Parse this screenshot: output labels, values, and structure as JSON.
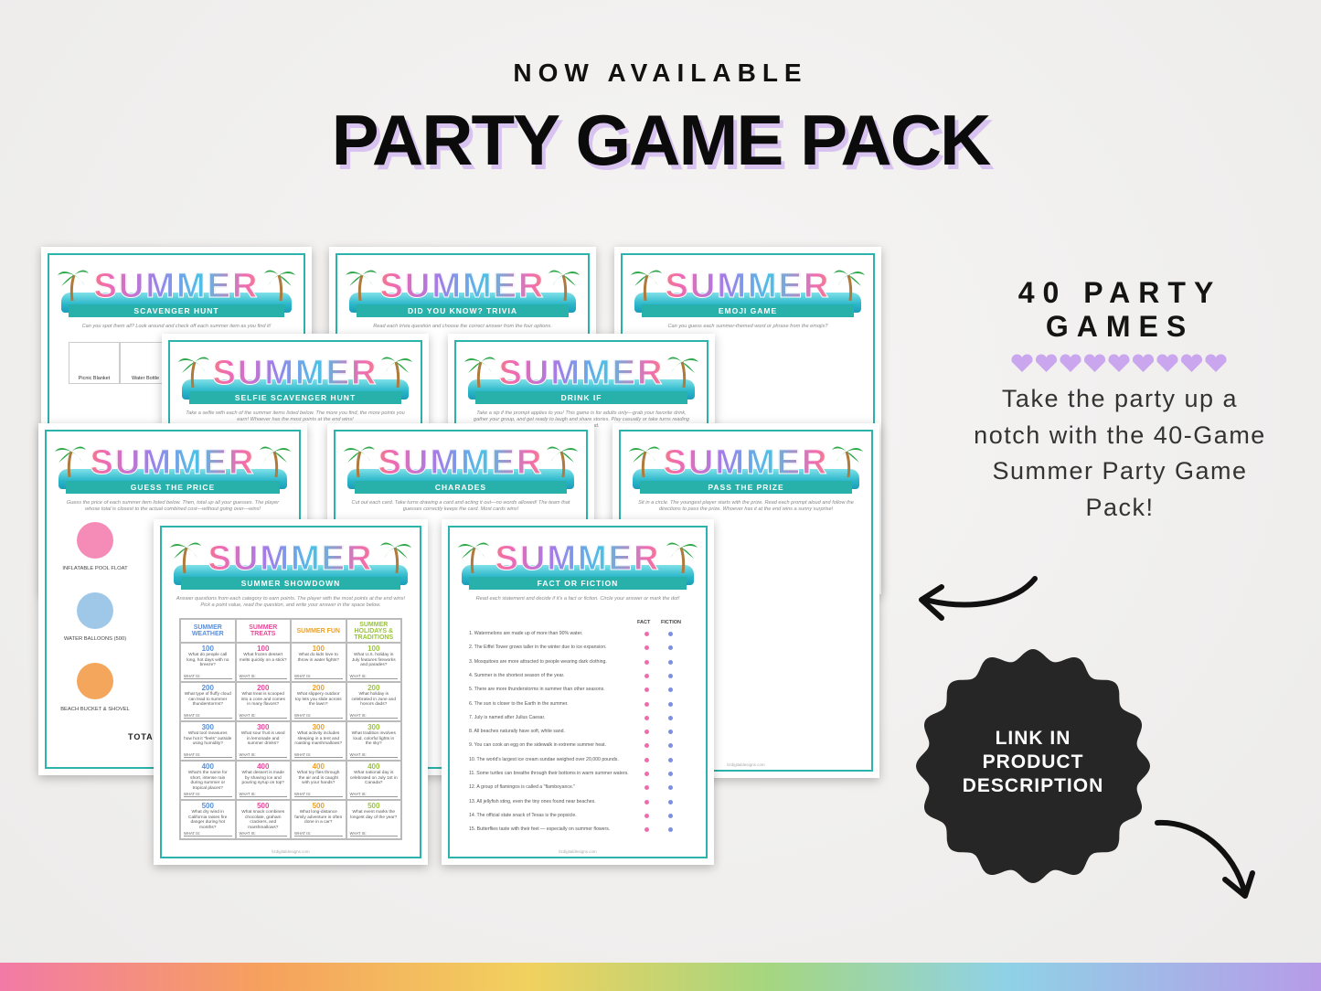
{
  "header": {
    "eyebrow": "NOW AVAILABLE",
    "title": "PARTY GAME PACK"
  },
  "banner_word": "SUMMER",
  "footer": "lizdigitaldesigns.com",
  "sheets": [
    {
      "title": "SCAVENGER HUNT",
      "intro": "Can you spot them all? Look around and check off each summer item as you find it!",
      "items": [
        "Picnic Blanket",
        "Water Bottle"
      ]
    },
    {
      "title": "DID YOU KNOW? TRIVIA",
      "intro": "Read each trivia question and choose the correct answer from the four options."
    },
    {
      "title": "EMOJI GAME",
      "intro": "Can you guess each summer-themed word or phrase from the emojis?"
    },
    {
      "title": "SELFIE SCAVENGER HUNT",
      "intro": "Take a selfie with each of the summer items listed below. The more you find, the more points you earn! Whoever has the most points at the end wins!"
    },
    {
      "title": "DRINK IF",
      "intro": "Take a sip if the prompt applies to you! This game is for adults only—grab your favorite drink, gather your group, and get ready to laugh and share stories. Play casually or take turns reading each line aloud."
    },
    {
      "title": "GUESS THE PRICE",
      "intro": "Guess the price of each summer item listed below. Then, total up all your guesses. The player whose total is closest to the actual combined cost—without going over—wins!",
      "items": [
        "INFLATABLE POOL FLOAT",
        "WATER BALLOONS (500)",
        "BEACH BUCKET & SHOVEL"
      ],
      "total_label": "TOTAL"
    },
    {
      "title": "CHARADES",
      "intro": "Cut out each card. Take turns drawing a card and acting it out—no words allowed! The team that guesses correctly keeps the card. Most cards wins!"
    },
    {
      "title": "PASS THE PRIZE",
      "intro": "Sit in a circle. The youngest player starts with the prize. Read each prompt aloud and follow the directions to pass the prize. Whoever has it at the end wins a sunny surprise!"
    },
    {
      "title": "SUMMER SHOWDOWN",
      "intro": "Answer questions from each category to earn points. The player with the most points at the end wins! Pick a point value, read the question, and write your answer in the space below.",
      "answer_label": "WHAT IS:",
      "columns": [
        {
          "name": "SUMMER WEATHER",
          "color": "#5b8fd9",
          "cells": [
            {
              "points": 100,
              "question": "What do people call long, hot days with no breeze?"
            },
            {
              "points": 200,
              "question": "What type of fluffy cloud can lead to summer thunderstorms?"
            },
            {
              "points": 300,
              "question": "What tool measures how hot it \"feels\" outside using humidity?"
            },
            {
              "points": 400,
              "question": "What's the name for short, intense rain during summer or tropical places?"
            },
            {
              "points": 500,
              "question": "What dry wind in California raises fire danger during hot months?"
            }
          ]
        },
        {
          "name": "SUMMER TREATS",
          "color": "#e84a9a",
          "cells": [
            {
              "points": 100,
              "question": "What frozen dessert melts quickly on a stick?"
            },
            {
              "points": 200,
              "question": "What treat is scooped into a cone and comes in many flavors?"
            },
            {
              "points": 300,
              "question": "What sour fruit is used in lemonade and summer drinks?"
            },
            {
              "points": 400,
              "question": "What dessert is made by shaving ice and pouring syrup on top?"
            },
            {
              "points": 500,
              "question": "What snack combines chocolate, graham crackers, and marshmallows?"
            }
          ]
        },
        {
          "name": "SUMMER FUN",
          "color": "#f0a020",
          "cells": [
            {
              "points": 100,
              "question": "What do kids love to throw in water fights?"
            },
            {
              "points": 200,
              "question": "What slippery outdoor toy lets you slide across the lawn?"
            },
            {
              "points": 300,
              "question": "What activity includes sleeping in a tent and roasting marshmallows?"
            },
            {
              "points": 400,
              "question": "What toy flies through the air and is caught with your hands?"
            },
            {
              "points": 500,
              "question": "What long-distance family adventure is often done in a car?"
            }
          ]
        },
        {
          "name": "SUMMER HOLIDAYS & TRADITIONS",
          "color": "#9ac43a",
          "cells": [
            {
              "points": 100,
              "question": "What U.S. holiday in July features fireworks and parades?"
            },
            {
              "points": 200,
              "question": "What holiday is celebrated in June and honors dads?"
            },
            {
              "points": 300,
              "question": "What tradition involves loud, colorful lights in the sky?"
            },
            {
              "points": 400,
              "question": "What national day is celebrated on July 1st in Canada?"
            },
            {
              "points": 500,
              "question": "What event marks the longest day of the year?"
            }
          ]
        }
      ]
    },
    {
      "title": "FACT OR FICTION",
      "intro": "Read each statement and decide if it's a fact or fiction. Circle your answer or mark the dot!",
      "answer_columns": [
        "FACT",
        "FICTION"
      ],
      "statements": [
        "1. Watermelons are made up of more than 90% water.",
        "2. The Eiffel Tower grows taller in the winter due to ice expansion.",
        "3. Mosquitoes are more attracted to people wearing dark clothing.",
        "4. Summer is the shortest season of the year.",
        "5. There are more thunderstorms in summer than other seasons.",
        "6. The sun is closer to the Earth in the summer.",
        "7. July is named after Julius Caesar.",
        "8. All beaches naturally have soft, white sand.",
        "9. You can cook an egg on the sidewalk in extreme summer heat.",
        "10. The world's largest ice cream sundae weighed over 20,000 pounds.",
        "11. Some turtles can breathe through their bottoms in warm summer waters.",
        "12. A group of flamingos is called a \"flamboyance.\"",
        "13. All jellyfish sting, even the tiny ones found near beaches.",
        "14. The official state snack of Texas is the popsicle.",
        "15. Butterflies taste with their feet — especially on summer flowers."
      ]
    }
  ],
  "promo": {
    "count": "40 PARTY GAMES",
    "tagline": "Take the party up a notch with the 40-Game Summer Party Game Pack!",
    "badge": "LINK IN PRODUCT DESCRIPTION"
  }
}
